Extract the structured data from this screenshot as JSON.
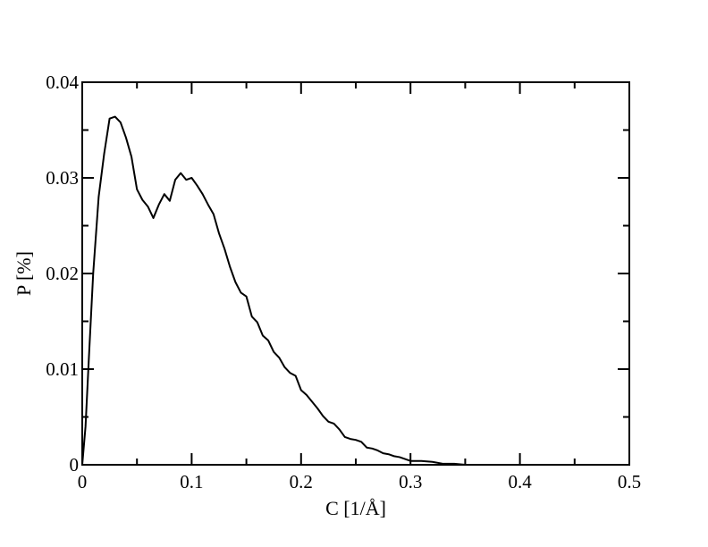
{
  "chart_data": {
    "type": "line",
    "title": "",
    "xlabel": "C [1/Å]",
    "ylabel": "P [%]",
    "xlim": [
      0,
      0.5
    ],
    "ylim": [
      0,
      0.04
    ],
    "x_ticks": [
      0,
      0.1,
      0.2,
      0.3,
      0.4,
      0.5
    ],
    "x_tick_labels": [
      "0",
      "0.1",
      "0.2",
      "0.3",
      "0.4",
      "0.5"
    ],
    "y_ticks": [
      0,
      0.01,
      0.02,
      0.03,
      0.04
    ],
    "y_tick_labels": [
      "0",
      "0.01",
      "0.02",
      "0.03",
      "0.04"
    ],
    "grid": false,
    "line_color": "#000000",
    "series": [
      {
        "x": [
          0,
          0.003,
          0.006,
          0.01,
          0.015,
          0.02,
          0.025,
          0.03,
          0.035,
          0.04,
          0.045,
          0.05,
          0.055,
          0.06,
          0.065,
          0.07,
          0.075,
          0.08,
          0.085,
          0.09,
          0.095,
          0.1,
          0.105,
          0.11,
          0.115,
          0.12,
          0.125,
          0.13,
          0.135,
          0.14,
          0.145,
          0.15,
          0.155,
          0.16,
          0.165,
          0.17,
          0.175,
          0.18,
          0.185,
          0.19,
          0.195,
          0.2,
          0.205,
          0.21,
          0.215,
          0.22,
          0.225,
          0.23,
          0.235,
          0.24,
          0.245,
          0.25,
          0.255,
          0.26,
          0.265,
          0.27,
          0.275,
          0.28,
          0.285,
          0.29,
          0.295,
          0.3,
          0.31,
          0.32,
          0.33,
          0.34,
          0.35,
          0.36,
          0.37
        ],
        "y": [
          0,
          0.004,
          0.011,
          0.02,
          0.028,
          0.0325,
          0.0362,
          0.0364,
          0.0358,
          0.0342,
          0.0322,
          0.0288,
          0.0277,
          0.027,
          0.0258,
          0.0272,
          0.0283,
          0.0276,
          0.0298,
          0.0305,
          0.0298,
          0.03,
          0.0292,
          0.0283,
          0.0272,
          0.0262,
          0.0242,
          0.0226,
          0.0207,
          0.0191,
          0.018,
          0.0176,
          0.0155,
          0.0149,
          0.0135,
          0.013,
          0.0118,
          0.0112,
          0.0102,
          0.0096,
          0.0093,
          0.0078,
          0.0073,
          0.0066,
          0.0059,
          0.0051,
          0.0045,
          0.0043,
          0.0037,
          0.0029,
          0.0027,
          0.0026,
          0.0024,
          0.0018,
          0.0017,
          0.0015,
          0.0012,
          0.0011,
          0.0009,
          0.0008,
          0.0006,
          0.0004,
          0.0004,
          0.0003,
          0.0001,
          0.0001,
          0,
          0,
          0
        ]
      }
    ]
  }
}
